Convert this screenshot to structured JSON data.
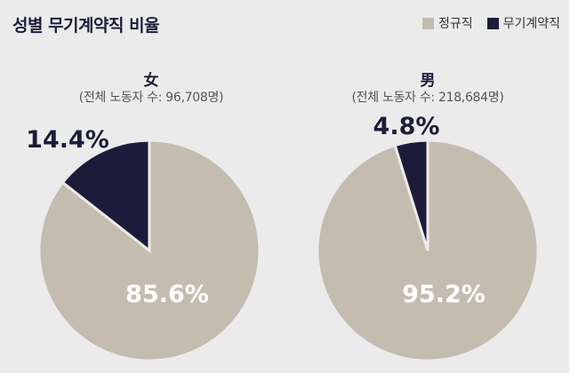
{
  "title": "성별 무기계약직 비율",
  "legend": [
    {
      "label": "정규직",
      "color": "#c5bcb0"
    },
    {
      "label": "무기계약직",
      "color": "#1c1c3a"
    }
  ],
  "chart_data": [
    {
      "type": "pie",
      "title": "女",
      "subtitle": "(전체 노동자 수: 96,708명)",
      "slices": [
        {
          "name": "정규직",
          "value": 85.6,
          "label": "85.6%"
        },
        {
          "name": "무기계약직",
          "value": 14.4,
          "label": "14.4%"
        }
      ]
    },
    {
      "type": "pie",
      "title": "男",
      "subtitle": "(전체 노동자 수: 218,684명)",
      "slices": [
        {
          "name": "정규직",
          "value": 95.2,
          "label": "95.2%"
        },
        {
          "name": "무기계약직",
          "value": 4.8,
          "label": "4.8%"
        }
      ]
    }
  ]
}
